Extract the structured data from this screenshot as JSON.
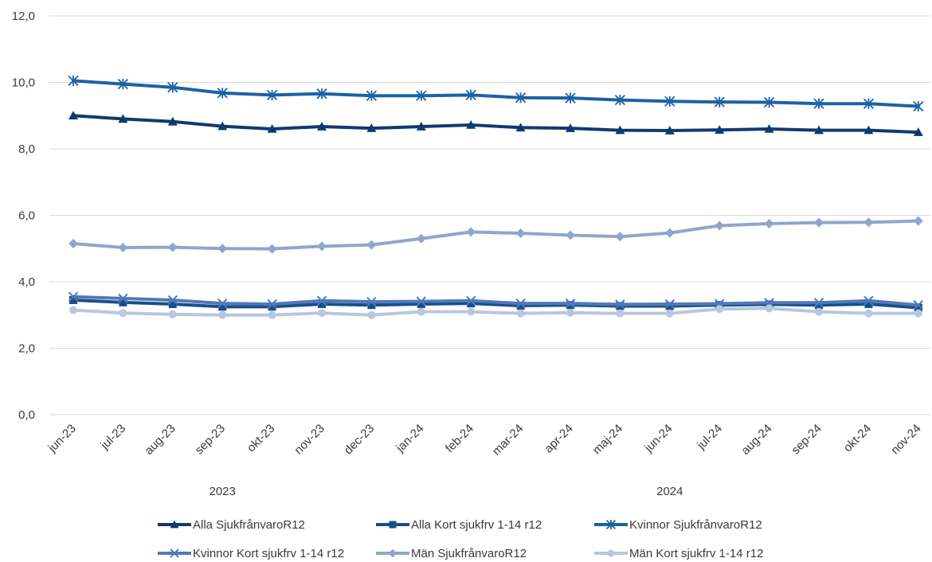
{
  "chart_data": {
    "type": "line",
    "categories": [
      "jun-23",
      "jul-23",
      "aug-23",
      "sep-23",
      "okt-23",
      "nov-23",
      "dec-23",
      "jan-24",
      "feb-24",
      "mar-24",
      "apr-24",
      "maj-24",
      "jun-24",
      "jul-24",
      "aug-24",
      "sep-24",
      "okt-24",
      "nov-24"
    ],
    "year_groups": [
      {
        "label": "2023",
        "from": 0,
        "to": 6
      },
      {
        "label": "2024",
        "from": 7,
        "to": 17
      }
    ],
    "y_ticks": [
      "0,0",
      "2,0",
      "4,0",
      "6,0",
      "8,0",
      "10,0",
      "12,0"
    ],
    "ylim": [
      0,
      12
    ],
    "grid": true,
    "legend_position": "bottom",
    "series": [
      {
        "name": "Alla SjukfrånvaroR12",
        "color": "#0d3b6e",
        "marker": "triangle",
        "values": [
          9.0,
          8.9,
          8.82,
          8.68,
          8.6,
          8.67,
          8.62,
          8.67,
          8.72,
          8.64,
          8.62,
          8.56,
          8.55,
          8.57,
          8.6,
          8.56,
          8.56,
          8.5
        ]
      },
      {
        "name": "Alla Kort sjukfrv 1-14 r12",
        "color": "#174f8c",
        "marker": "square",
        "values": [
          3.45,
          3.38,
          3.33,
          3.25,
          3.25,
          3.33,
          3.3,
          3.33,
          3.35,
          3.28,
          3.3,
          3.27,
          3.27,
          3.3,
          3.32,
          3.3,
          3.33,
          3.22
        ]
      },
      {
        "name": "Kvinnor SjukfrånvaroR12",
        "color": "#1b62a6",
        "marker": "asterisk",
        "values": [
          10.05,
          9.95,
          9.85,
          9.68,
          9.62,
          9.66,
          9.6,
          9.6,
          9.62,
          9.54,
          9.53,
          9.47,
          9.43,
          9.41,
          9.4,
          9.36,
          9.36,
          9.28
        ]
      },
      {
        "name": "Kvinnor Kort sjukfrv 1-14 r12",
        "color": "#4f7ab8",
        "marker": "x",
        "values": [
          3.55,
          3.5,
          3.45,
          3.35,
          3.33,
          3.43,
          3.4,
          3.41,
          3.43,
          3.35,
          3.35,
          3.32,
          3.33,
          3.34,
          3.37,
          3.37,
          3.43,
          3.3
        ]
      },
      {
        "name": "Män SjukfrånvaroR12",
        "color": "#8fa6cc",
        "marker": "diamond",
        "values": [
          5.15,
          5.03,
          5.04,
          5.0,
          4.99,
          5.07,
          5.11,
          5.3,
          5.5,
          5.46,
          5.4,
          5.36,
          5.47,
          5.69,
          5.75,
          5.78,
          5.79,
          5.83
        ]
      },
      {
        "name": "Män Kort sjukfrv 1-14 r12",
        "color": "#b9c6df",
        "marker": "circle",
        "values": [
          3.15,
          3.06,
          3.02,
          3.0,
          3.0,
          3.06,
          3.0,
          3.1,
          3.1,
          3.05,
          3.07,
          3.05,
          3.05,
          3.18,
          3.2,
          3.1,
          3.05,
          3.05
        ]
      }
    ]
  }
}
